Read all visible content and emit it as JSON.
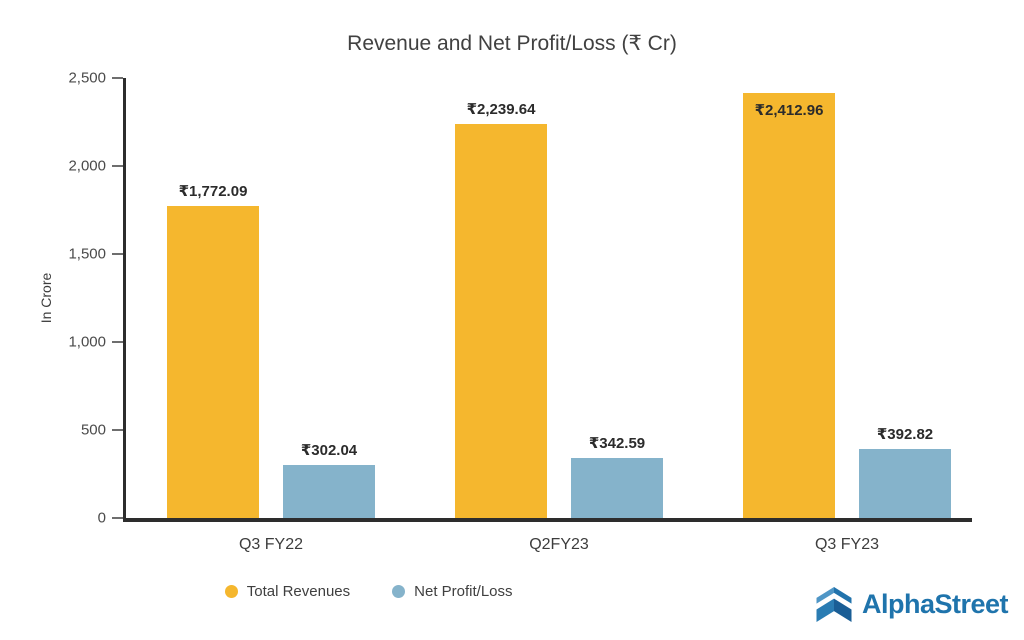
{
  "title": "Revenue and Net Profit/Loss (₹ Cr)",
  "chart_data": {
    "type": "bar",
    "title": "Revenue and Net Profit/Loss (₹ Cr)",
    "ylabel": "In Crore",
    "xlabel": "",
    "ylim": [
      0,
      2500
    ],
    "yticks": [
      0,
      500,
      1000,
      1500,
      2000,
      2500
    ],
    "ytick_labels": [
      "0",
      "500",
      "1,000",
      "1,500",
      "2,000",
      "2,500"
    ],
    "grid": false,
    "legend_position": "bottom",
    "categories": [
      "Q3 FY22",
      "Q2FY23",
      "Q3 FY23"
    ],
    "series": [
      {
        "name": "Total Revenues",
        "color": "#F5B72E",
        "values": [
          1772.09,
          2239.64,
          2412.96
        ],
        "labels": [
          "₹1,772.09",
          "₹2,239.64",
          "₹2,412.96"
        ]
      },
      {
        "name": "Net Profit/Loss",
        "color": "#85B3CB",
        "values": [
          302.04,
          342.59,
          392.82
        ],
        "labels": [
          "₹302.04",
          "₹342.59",
          "₹392.82"
        ]
      }
    ]
  },
  "legend": {
    "items": [
      {
        "label": "Total Revenues",
        "color": "#F5B72E"
      },
      {
        "label": "Net Profit/Loss",
        "color": "#85B3CB"
      }
    ]
  },
  "branding": {
    "name": "AlphaStreet",
    "color": "#1f74ac"
  }
}
